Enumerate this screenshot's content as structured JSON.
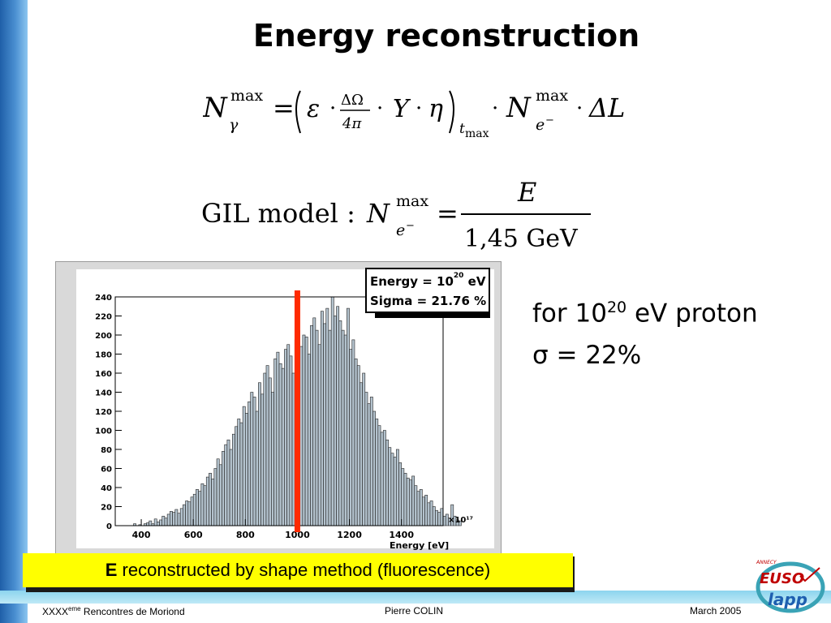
{
  "slide": {
    "title": "Energy reconstruction",
    "formula1": {
      "lhs": "N",
      "lhs_sup": "max",
      "lhs_sub": "γ",
      "eq": "=",
      "eps": "ε",
      "dot": "·",
      "frac_num": "ΔΩ",
      "frac_den": "4π",
      "Y": "Y",
      "eta": "η",
      "sub_t": "t",
      "sub_max": "max",
      "N": "N",
      "N_sup": "max",
      "N_sub": "e",
      "N_sub_sup": "−",
      "dL": "ΔL"
    },
    "formula2": {
      "prefix": "GIL model : ",
      "N": "N",
      "N_sup": "max",
      "N_sub": "e",
      "N_sub_sup": "−",
      "eq": "=",
      "num": "E",
      "den": "1,45 GeV"
    },
    "note_line1_a": "for 10",
    "note_line1_sup": "20",
    "note_line1_b": " eV proton",
    "note_line2": "σ = 22%",
    "caption_bold": "E",
    "caption_rest": " reconstructed by shape method (fluorescence)",
    "footer": {
      "left_a": "XXXX",
      "left_sup": "eme",
      "left_b": " Rencontres de Moriond",
      "center": "Pierre COLIN",
      "right": "March 2005"
    },
    "logo": {
      "top": "ANNECY",
      "line1": "EUSO",
      "line2": "lapp"
    }
  },
  "colors": {
    "accent_bar": "#1f5fa8",
    "histogram_fill": "#b4c3ce",
    "marker": "#ff2a00",
    "caption_bg": "#ffff00"
  },
  "chart_data": {
    "type": "histogram",
    "title": "",
    "xlabel": "Energy [eV]",
    "x_exponent": "×10¹⁷",
    "ylabel": "",
    "xlim": [
      300,
      1560
    ],
    "ylim": [
      0,
      240
    ],
    "xticks": [
      400,
      600,
      800,
      1000,
      1200,
      1400
    ],
    "yticks": [
      0,
      20,
      40,
      60,
      80,
      100,
      120,
      140,
      160,
      180,
      200,
      220,
      240
    ],
    "stats": {
      "energy_label": "Energy = 10",
      "energy_sup": "20",
      "energy_unit": "eV",
      "sigma": "Sigma = 21.76 %"
    },
    "marker_x": 1000,
    "bin_width": 10,
    "bins_start": 370,
    "counts": [
      2,
      0,
      1,
      0,
      2,
      3,
      5,
      2,
      7,
      4,
      6,
      10,
      8,
      12,
      15,
      14,
      17,
      13,
      18,
      22,
      26,
      25,
      30,
      33,
      38,
      36,
      44,
      42,
      51,
      55,
      49,
      60,
      70,
      64,
      78,
      85,
      90,
      80,
      96,
      104,
      112,
      108,
      125,
      118,
      130,
      140,
      135,
      120,
      150,
      138,
      160,
      168,
      155,
      140,
      175,
      182,
      170,
      165,
      185,
      190,
      178,
      160,
      195,
      205,
      188,
      200,
      198,
      180,
      210,
      218,
      205,
      190,
      225,
      212,
      228,
      205,
      240,
      220,
      230,
      215,
      205,
      200,
      228,
      185,
      195,
      175,
      168,
      150,
      160,
      140,
      128,
      135,
      120,
      112,
      105,
      98,
      100,
      90,
      82,
      76,
      72,
      80,
      66,
      60,
      55,
      50,
      48,
      52,
      42,
      36,
      38,
      30,
      32,
      24,
      26,
      20,
      16,
      14,
      18,
      10,
      12,
      8,
      22,
      10,
      6,
      5
    ]
  }
}
